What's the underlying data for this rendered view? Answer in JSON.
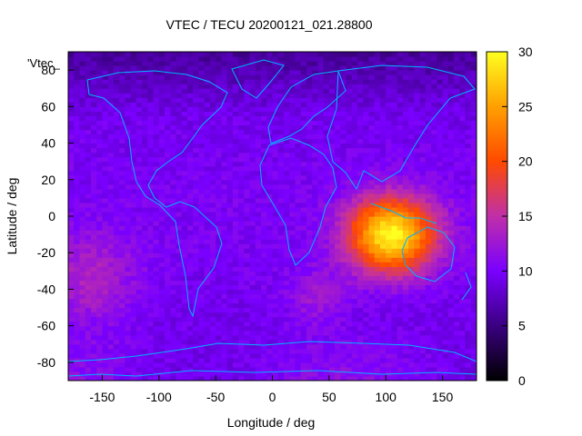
{
  "chart_data": {
    "type": "heatmap",
    "title": "VTEC / TECU 20200121_021.28800",
    "xlabel": "Longitude / deg",
    "ylabel": "Latitude / deg",
    "series_label": "'Vtec_",
    "xlim": [
      -180,
      180
    ],
    "ylim": [
      -90,
      90
    ],
    "x_ticks": [
      -150,
      -100,
      -50,
      0,
      50,
      100,
      150
    ],
    "y_ticks": [
      -80,
      -60,
      -40,
      -20,
      0,
      20,
      40,
      60,
      80
    ],
    "colorbar": {
      "range": [
        0,
        30
      ],
      "ticks": [
        0,
        5,
        10,
        15,
        20,
        25,
        30
      ],
      "palette": [
        "#000000",
        "#3a0080",
        "#7a00ff",
        "#c02fa8",
        "#ff4a00",
        "#ffa000",
        "#ffff20"
      ]
    },
    "features": [
      {
        "lon": 105,
        "lat": -10,
        "value": 29,
        "label": "peak over Indian Ocean / Indonesia"
      }
    ],
    "background_value": 9,
    "coastline_color": "#00b4ff"
  }
}
